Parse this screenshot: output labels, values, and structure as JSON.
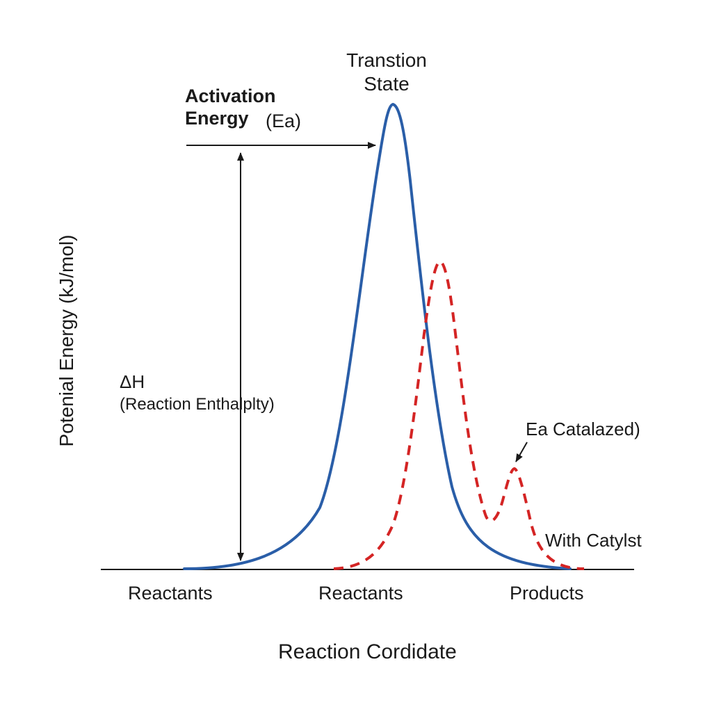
{
  "diagram": {
    "title": "",
    "y_axis_label": "Potenial Energy (kJ/mol)",
    "x_axis_label": "Reaction Cordidate",
    "categories": [
      "Reactants",
      "Reactants",
      "Products"
    ],
    "transition_state_label": "Transtion State",
    "activation_energy": {
      "label": "Activation Energy",
      "symbol": "(Ea)"
    },
    "enthalpy": {
      "symbol": "ΔH",
      "label": "(Reaction Enthalplty)"
    },
    "catalyzed_label": "Ea Catalazed)",
    "with_catalyst_label": "With Catylst",
    "colors": {
      "uncatalyzed": "#2a5ea8",
      "catalyzed": "#d42424",
      "axis": "#1a1a1a"
    },
    "curves": [
      {
        "style": "solid",
        "color_key": "uncatalyzed"
      },
      {
        "style": "dashed",
        "color_key": "catalyzed"
      }
    ]
  }
}
